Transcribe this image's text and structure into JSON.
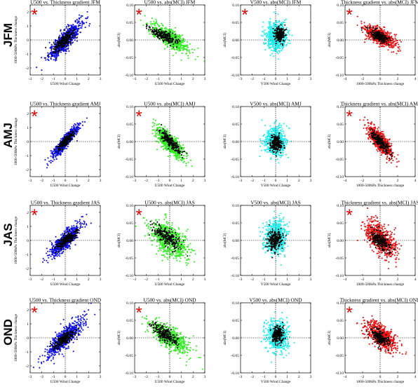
{
  "figure": {
    "rows": [
      "JFM",
      "AMJ",
      "JAS",
      "OND"
    ],
    "star_symbol": "*",
    "colors": {
      "blue": "#1010ee",
      "green": "#33ee22",
      "cyan": "#22eeee",
      "red": "#ee1010",
      "black": "#000000",
      "star": "#e10000"
    }
  },
  "chart_data": [
    {
      "type": "scatter",
      "row": "JFM",
      "col": 0,
      "title": "U500 vs. Thickness gradient JFM",
      "xlabel": "U500 Wind Change",
      "ylabel": "1000-500hPa Thickness change",
      "xlim": [
        -3,
        3
      ],
      "ylim": [
        -2.5,
        2.5
      ],
      "xticks": [
        "-3",
        "-2",
        "-1",
        "0",
        "1",
        "2",
        "3"
      ],
      "yticks": [
        "-2",
        "-1",
        "0",
        "1",
        "2"
      ],
      "color": "blue",
      "star": true,
      "cloud": {
        "center": [
          0,
          0
        ],
        "slope": 0.85,
        "spread_x": 0.7,
        "spread_y": 0.35
      },
      "core": {
        "center": [
          -0.1,
          -0.1
        ],
        "slope": 0.7,
        "spread_x": 0.5,
        "spread_y": 0.25
      }
    },
    {
      "type": "scatter",
      "row": "JFM",
      "col": 1,
      "title": "U500 vs. abs(MCI) JFM",
      "xlabel": "U500 Wind Change",
      "ylabel": "abs(MCI)",
      "xlim": [
        -3,
        3
      ],
      "ylim": [
        -0.1,
        0.1
      ],
      "xticks": [
        "-3",
        "-2",
        "-1",
        "0",
        "1",
        "2",
        "3"
      ],
      "yticks": [
        "-0.10",
        "-0.05",
        "0.00",
        "0.05",
        "0.10"
      ],
      "color": "green",
      "star": true,
      "cloud": {
        "center": [
          0,
          0.005
        ],
        "slope": -0.02,
        "spread_x": 0.8,
        "spread_y": 0.012
      },
      "core": {
        "center": [
          -0.5,
          0.012
        ],
        "slope": -0.015,
        "spread_x": 0.6,
        "spread_y": 0.007
      }
    },
    {
      "type": "scatter",
      "row": "JFM",
      "col": 2,
      "title": "V500 vs. abs(MCI) JFM",
      "xlabel": "V500 Wind Change",
      "ylabel": "abs(MCI)",
      "xlim": [
        -3,
        3
      ],
      "ylim": [
        -0.1,
        0.1
      ],
      "xticks": [
        "-3",
        "-2",
        "-1",
        "0",
        "1",
        "2",
        "3"
      ],
      "yticks": [
        "-0.10",
        "-0.05",
        "0.00",
        "0.05",
        "0.10"
      ],
      "color": "cyan",
      "star": true,
      "cloud": {
        "center": [
          0.1,
          0.01
        ],
        "slope": 0.0,
        "spread_x": 0.45,
        "spread_y": 0.02
      },
      "core": {
        "center": [
          0.35,
          0.015
        ],
        "slope": 0.0,
        "spread_x": 0.2,
        "spread_y": 0.01
      }
    },
    {
      "type": "scatter",
      "row": "JFM",
      "col": 3,
      "title": "Thickness gradient vs. abs(MCI) JFM",
      "xlabel": "1000-500hPa Thickness change",
      "ylabel": "abs(MCI)",
      "xlim": [
        -4,
        4
      ],
      "ylim": [
        -0.1,
        0.1
      ],
      "xticks": [
        "-4",
        "-2",
        "0",
        "2",
        "4"
      ],
      "yticks": [
        "-0.10",
        "-0.05",
        "0.00",
        "0.05",
        "0.10"
      ],
      "color": "red",
      "star": true,
      "cloud": {
        "center": [
          0,
          0.01
        ],
        "slope": -0.012,
        "spread_x": 0.9,
        "spread_y": 0.012
      },
      "core": {
        "center": [
          -0.2,
          0.012
        ],
        "slope": -0.01,
        "spread_x": 0.6,
        "spread_y": 0.007
      }
    },
    {
      "type": "scatter",
      "row": "AMJ",
      "col": 0,
      "title": "U500 vs. Thickness gradient AMJ",
      "xlabel": "U500 Wind Change",
      "ylabel": "1000-500hPa Thickness change",
      "xlim": [
        -3,
        3
      ],
      "ylim": [
        -2.5,
        2.5
      ],
      "xticks": [
        "-3",
        "-2",
        "-1",
        "0",
        "1",
        "2",
        "3"
      ],
      "yticks": [
        "-2",
        "-1",
        "0",
        "1",
        "2"
      ],
      "color": "blue",
      "star": true,
      "cloud": {
        "center": [
          0,
          0
        ],
        "slope": 0.95,
        "spread_x": 0.55,
        "spread_y": 0.22
      },
      "core": {
        "center": [
          0,
          0
        ],
        "slope": 0.85,
        "spread_x": 0.35,
        "spread_y": 0.15
      }
    },
    {
      "type": "scatter",
      "row": "AMJ",
      "col": 1,
      "title": "U500 vs. abs(MCI) AMJ",
      "xlabel": "U500 Wind Change",
      "ylabel": "abs(MCI)",
      "xlim": [
        -3,
        3
      ],
      "ylim": [
        -0.1,
        0.1
      ],
      "xticks": [
        "-3",
        "-2",
        "-1",
        "0",
        "1",
        "2",
        "3"
      ],
      "yticks": [
        "-0.10",
        "-0.05",
        "0.00",
        "0.05",
        "0.10"
      ],
      "color": "green",
      "star": true,
      "cloud": {
        "center": [
          0,
          -0.005
        ],
        "slope": -0.03,
        "spread_x": 0.6,
        "spread_y": 0.014
      },
      "core": {
        "center": [
          0.05,
          0.0
        ],
        "slope": -0.03,
        "spread_x": 0.45,
        "spread_y": 0.008
      }
    },
    {
      "type": "scatter",
      "row": "AMJ",
      "col": 2,
      "title": "V500 vs. abs(MCI) AMJ",
      "xlabel": "V500 Wind Change",
      "ylabel": "abs(MCI)",
      "xlim": [
        -3,
        3
      ],
      "ylim": [
        -0.1,
        0.1
      ],
      "xticks": [
        "-3",
        "-2",
        "-1",
        "0",
        "1",
        "2",
        "3"
      ],
      "yticks": [
        "-0.10",
        "-0.05",
        "0.00",
        "0.05",
        "0.10"
      ],
      "color": "cyan",
      "star": false,
      "cloud": {
        "center": [
          0,
          0.0
        ],
        "slope": 0.0,
        "spread_x": 0.45,
        "spread_y": 0.02
      },
      "core": {
        "center": [
          0.05,
          -0.005
        ],
        "slope": 0.0,
        "spread_x": 0.25,
        "spread_y": 0.012
      }
    },
    {
      "type": "scatter",
      "row": "AMJ",
      "col": 3,
      "title": "Thickness gradient vs. abs(MCI) AMJ",
      "xlabel": "1000-500hPa Thickness change",
      "ylabel": "abs(MCI)",
      "xlim": [
        -4,
        4
      ],
      "ylim": [
        -0.1,
        0.1
      ],
      "xticks": [
        "-4",
        "-2",
        "0",
        "2",
        "4"
      ],
      "yticks": [
        "-0.10",
        "-0.05",
        "0.00",
        "0.05",
        "0.10"
      ],
      "color": "red",
      "star": true,
      "cloud": {
        "center": [
          0,
          0.0
        ],
        "slope": -0.025,
        "spread_x": 0.7,
        "spread_y": 0.014
      },
      "core": {
        "center": [
          0,
          0.0
        ],
        "slope": -0.022,
        "spread_x": 0.5,
        "spread_y": 0.008
      }
    },
    {
      "type": "scatter",
      "row": "JAS",
      "col": 0,
      "title": "U500 vs. Thickness gradient JAS",
      "xlabel": "U500 Wind Change",
      "ylabel": "1000-500hPa Thickness change",
      "xlim": [
        -3,
        3
      ],
      "ylim": [
        -2.5,
        2.5
      ],
      "xticks": [
        "-3",
        "-2",
        "-1",
        "0",
        "1",
        "2",
        "3"
      ],
      "yticks": [
        "-2",
        "-1",
        "0",
        "1",
        "2"
      ],
      "color": "blue",
      "star": true,
      "cloud": {
        "center": [
          0,
          0
        ],
        "slope": 0.75,
        "spread_x": 0.65,
        "spread_y": 0.3
      },
      "core": {
        "center": [
          0.1,
          0.05
        ],
        "slope": 0.55,
        "spread_x": 0.45,
        "spread_y": 0.18
      }
    },
    {
      "type": "scatter",
      "row": "JAS",
      "col": 1,
      "title": "U500 vs. abs(MCI) JAS",
      "xlabel": "U500 Wind Change",
      "ylabel": "abs(MCI)",
      "xlim": [
        -3,
        3
      ],
      "ylim": [
        -0.1,
        0.1
      ],
      "xticks": [
        "-3",
        "-2",
        "-1",
        "0",
        "1",
        "2",
        "3"
      ],
      "yticks": [
        "-0.10",
        "-0.05",
        "0.00",
        "0.05",
        "0.10"
      ],
      "color": "green",
      "star": true,
      "cloud": {
        "center": [
          0,
          0.0
        ],
        "slope": -0.018,
        "spread_x": 0.8,
        "spread_y": 0.022
      },
      "core": {
        "center": [
          -0.2,
          0.01
        ],
        "slope": -0.02,
        "spread_x": 0.55,
        "spread_y": 0.012
      }
    },
    {
      "type": "scatter",
      "row": "JAS",
      "col": 2,
      "title": "V500 vs. abs(MCI) JAS",
      "xlabel": "V500 Wind Change",
      "ylabel": "abs(MCI)",
      "xlim": [
        -3,
        3
      ],
      "ylim": [
        -0.1,
        0.1
      ],
      "xticks": [
        "-3",
        "-2",
        "-1",
        "0",
        "1",
        "2",
        "3"
      ],
      "yticks": [
        "-0.10",
        "-0.05",
        "0.00",
        "0.05",
        "0.10"
      ],
      "color": "cyan",
      "star": false,
      "cloud": {
        "center": [
          0,
          0.01
        ],
        "slope": 0.0,
        "spread_x": 0.45,
        "spread_y": 0.025
      },
      "core": {
        "center": [
          -0.05,
          0.0
        ],
        "slope": 0.0,
        "spread_x": 0.3,
        "spread_y": 0.015
      }
    },
    {
      "type": "scatter",
      "row": "JAS",
      "col": 3,
      "title": "Thickness gradient vs. abs(MCI) JAS",
      "xlabel": "1000-500hPa Thickness change",
      "ylabel": "abs(MCI)",
      "xlim": [
        -4,
        4
      ],
      "ylim": [
        -0.1,
        0.1
      ],
      "xticks": [
        "-4",
        "-2",
        "0",
        "2",
        "4"
      ],
      "yticks": [
        "-0.10",
        "-0.05",
        "0.00",
        "0.05",
        "0.10"
      ],
      "color": "red",
      "star": true,
      "cloud": {
        "center": [
          0,
          0.005
        ],
        "slope": -0.015,
        "spread_x": 0.9,
        "spread_y": 0.022
      },
      "core": {
        "center": [
          0,
          0.0
        ],
        "slope": -0.015,
        "spread_x": 0.55,
        "spread_y": 0.012
      }
    },
    {
      "type": "scatter",
      "row": "OND",
      "col": 0,
      "title": "U500 vs. Thickness gradient OND",
      "xlabel": "U500 Wind Change",
      "ylabel": "1000-500hPa Thickness change",
      "xlim": [
        -3,
        3
      ],
      "ylim": [
        -2.5,
        2.5
      ],
      "xticks": [
        "-3",
        "-2",
        "-1",
        "0",
        "1",
        "2",
        "3"
      ],
      "yticks": [
        "-2",
        "-1",
        "0",
        "1",
        "2"
      ],
      "color": "blue",
      "star": true,
      "cloud": {
        "center": [
          0,
          0
        ],
        "slope": 0.75,
        "spread_x": 0.75,
        "spread_y": 0.35
      },
      "core": {
        "center": [
          -0.1,
          -0.1
        ],
        "slope": 0.55,
        "spread_x": 0.5,
        "spread_y": 0.22
      }
    },
    {
      "type": "scatter",
      "row": "OND",
      "col": 1,
      "title": "U500 vs. abs(MCI) OND",
      "xlabel": "U500 Wind Change",
      "ylabel": "abs(MCI)",
      "xlim": [
        -3,
        3
      ],
      "ylim": [
        -0.1,
        0.1
      ],
      "xticks": [
        "-3",
        "-2",
        "-1",
        "0",
        "1",
        "2",
        "3"
      ],
      "yticks": [
        "-0.10",
        "-0.05",
        "0.00",
        "0.05",
        "0.10"
      ],
      "color": "green",
      "star": true,
      "cloud": {
        "center": [
          0,
          0.0
        ],
        "slope": -0.02,
        "spread_x": 0.8,
        "spread_y": 0.015
      },
      "core": {
        "center": [
          -0.4,
          0.01
        ],
        "slope": -0.02,
        "spread_x": 0.55,
        "spread_y": 0.01
      }
    },
    {
      "type": "scatter",
      "row": "OND",
      "col": 2,
      "title": "V500 vs. abs(MCI) OND",
      "xlabel": "V500 Wind Change",
      "ylabel": "abs(MCI)",
      "xlim": [
        -3,
        3
      ],
      "ylim": [
        -0.1,
        0.1
      ],
      "xticks": [
        "-3",
        "-2",
        "-1",
        "0",
        "1",
        "2",
        "3"
      ],
      "yticks": [
        "-0.10",
        "-0.05",
        "0.00",
        "0.05",
        "0.10"
      ],
      "color": "cyan",
      "star": false,
      "cloud": {
        "center": [
          0.15,
          0.005
        ],
        "slope": 0.0,
        "spread_x": 0.45,
        "spread_y": 0.022
      },
      "core": {
        "center": [
          0.2,
          0.01
        ],
        "slope": 0.0,
        "spread_x": 0.25,
        "spread_y": 0.012
      }
    },
    {
      "type": "scatter",
      "row": "OND",
      "col": 3,
      "title": "Thickness gradient vs. abs(MCI) OND",
      "xlabel": "1000-500hPa Thickness change",
      "ylabel": "abs(MCI)",
      "xlim": [
        -4,
        4
      ],
      "ylim": [
        -0.1,
        0.1
      ],
      "xticks": [
        "-4",
        "-2",
        "0",
        "2",
        "4"
      ],
      "yticks": [
        "-0.10",
        "-0.05",
        "0.00",
        "0.05",
        "0.10"
      ],
      "color": "red",
      "star": true,
      "cloud": {
        "center": [
          0.1,
          0.005
        ],
        "slope": -0.015,
        "spread_x": 0.85,
        "spread_y": 0.015
      },
      "core": {
        "center": [
          0,
          0.0
        ],
        "slope": -0.015,
        "spread_x": 0.5,
        "spread_y": 0.01
      }
    }
  ]
}
